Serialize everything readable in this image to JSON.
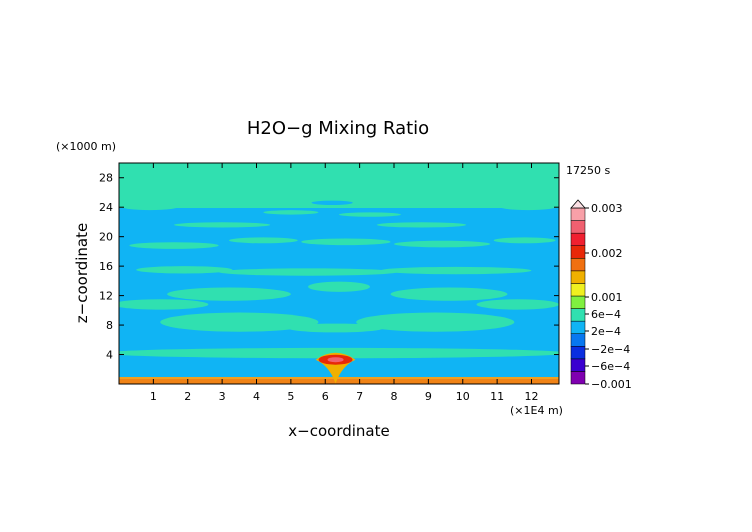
{
  "chart_data": {
    "type": "heatmap",
    "title": "H2O−g Mixing Ratio",
    "xlabel": "x−coordinate",
    "ylabel": "z−coordinate",
    "x_unit": "(×1E4 m)",
    "y_unit": "(×1000 m)",
    "time_label": "17250 s",
    "xlim": [
      0,
      12.8
    ],
    "ylim": [
      0,
      30
    ],
    "x_ticks": [
      "1",
      "2",
      "3",
      "4",
      "5",
      "6",
      "7",
      "8",
      "9",
      "10",
      "11",
      "12"
    ],
    "y_ticks": [
      "4",
      "8",
      "12",
      "16",
      "20",
      "24",
      "28"
    ],
    "colorbar": {
      "labels": [
        "0.003",
        "0.002",
        "0.001",
        "6e−4",
        "2e−4",
        "−2e−4",
        "−6e−4",
        "−0.001"
      ],
      "colors": [
        "#7f00b0",
        "#3a00d0",
        "#0a2ee0",
        "#0878f0",
        "#10b4f4",
        "#30e0b0",
        "#80f040",
        "#f0f020",
        "#f0b000",
        "#f07010",
        "#e82808",
        "#f02030",
        "#f06070",
        "#f8a0a8"
      ]
    },
    "bands": [
      {
        "z": [
          0.0,
          0.6
        ],
        "value": "0.001"
      },
      {
        "z": [
          0.6,
          3.0
        ],
        "value": "−2e−4"
      },
      {
        "z": [
          3.0,
          5.0
        ],
        "value": "2e−4"
      },
      {
        "z": [
          5.0,
          23.5
        ],
        "value": "−2e−4"
      },
      {
        "z": [
          23.5,
          30.0
        ],
        "value": "2e−4"
      }
    ],
    "peak": {
      "x": 6.3,
      "z": 3.3,
      "value": "0.003"
    }
  }
}
